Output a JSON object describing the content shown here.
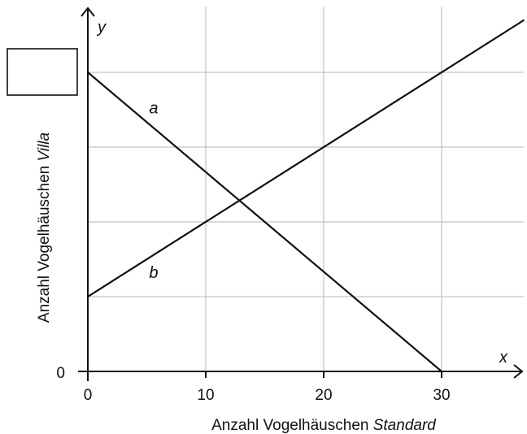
{
  "chart_data": {
    "type": "line",
    "xlabel_prefix": "Anzahl Vogelhäuschen ",
    "xlabel_emph": "Standard",
    "ylabel_prefix": "Anzahl Vogelhäuschen ",
    "ylabel_emph": "Villa",
    "x_axis_var": "x",
    "y_axis_var": "y",
    "x_ticks": [
      0,
      10,
      20,
      30
    ],
    "y_ticks": [
      0
    ],
    "y_tick_label": "0",
    "xlim": [
      0,
      37
    ],
    "ylim": [
      0,
      4.2
    ],
    "y_unlabeled_gridlines": [
      1,
      2,
      3,
      4
    ],
    "grid": true,
    "y_intercept_box_value": "",
    "series": [
      {
        "name": "a",
        "x": [
          0,
          30
        ],
        "y": [
          4,
          0
        ]
      },
      {
        "name": "b",
        "x": [
          0,
          37
        ],
        "y": [
          1,
          4.7
        ]
      }
    ]
  }
}
